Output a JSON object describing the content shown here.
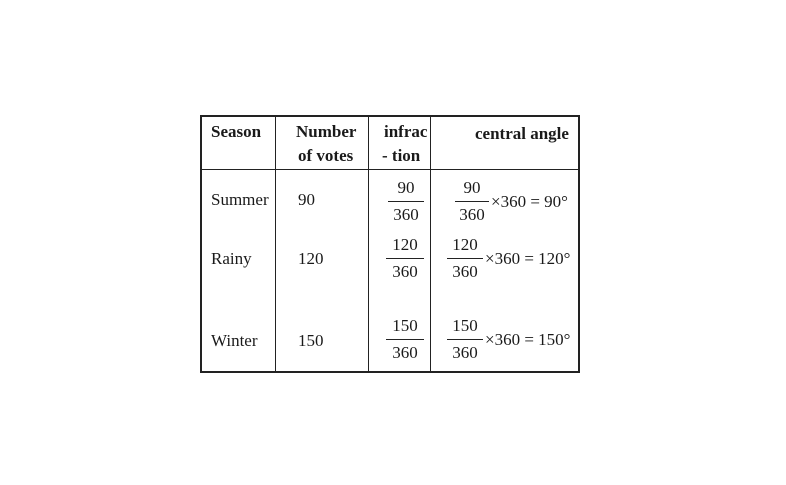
{
  "headers": {
    "season": "Season",
    "votes_1": "Number",
    "votes_2": "of votes",
    "fraction_1": "infrac",
    "fraction_2": "- tion",
    "angle": "central angle"
  },
  "rows": [
    {
      "season": "Summer",
      "votes": "90",
      "num": "90",
      "den": "360",
      "tail": "×360 = 90°"
    },
    {
      "season": "Rainy",
      "votes": "120",
      "num": "120",
      "den": "360",
      "tail": "×360 = 120°"
    },
    {
      "season": "Winter",
      "votes": "150",
      "num": "150",
      "den": "360",
      "tail": "×360 = 150°"
    }
  ]
}
